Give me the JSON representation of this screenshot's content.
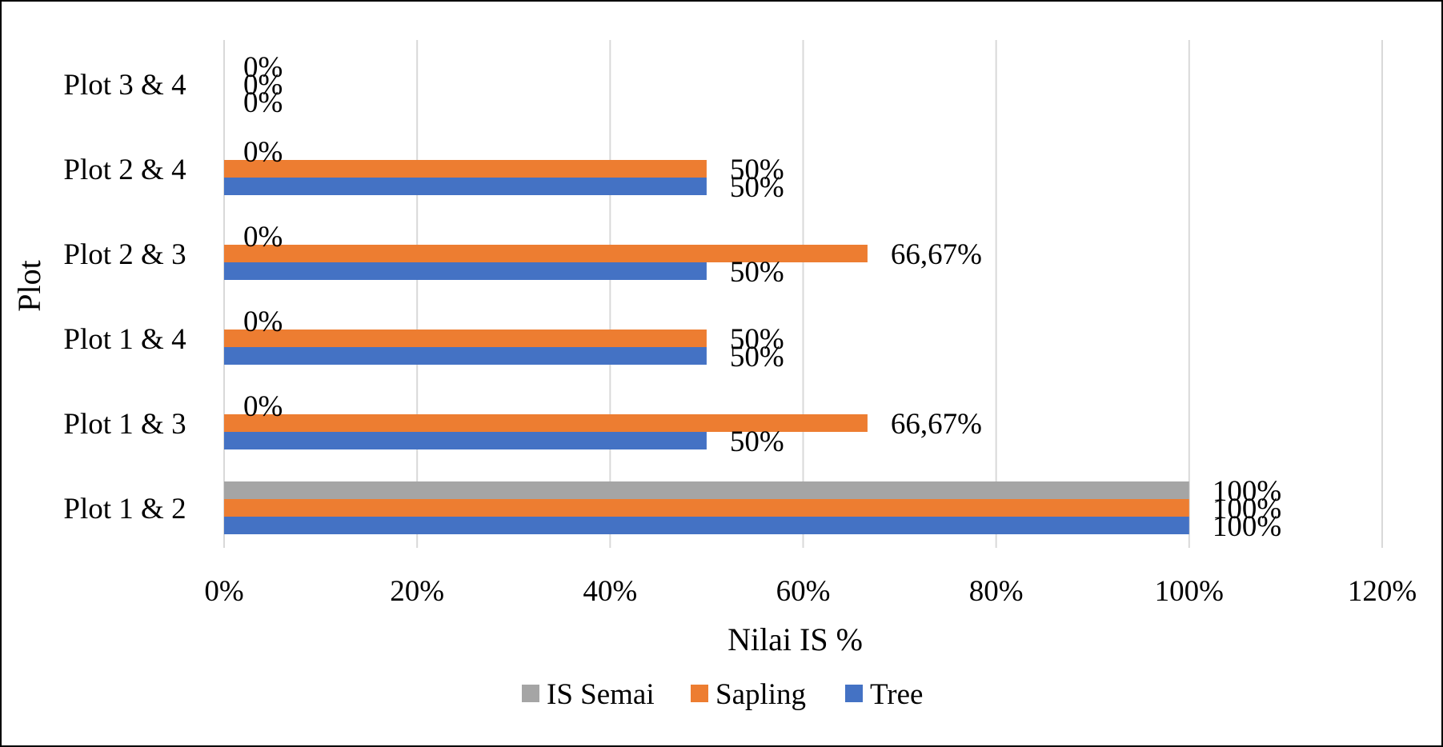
{
  "chart_data": {
    "type": "bar",
    "orientation": "horizontal",
    "categories": [
      "Plot 1 & 2",
      "Plot 1 & 3",
      "Plot 1 & 4",
      "Plot 2 & 3",
      "Plot 2 & 4",
      "Plot 3 & 4"
    ],
    "series": [
      {
        "name": "Tree",
        "color": "#4472c4",
        "values": [
          100,
          50,
          50,
          50,
          50,
          0
        ],
        "labels": [
          "100%",
          "50%",
          "50%",
          "50%",
          "50%",
          "0%"
        ]
      },
      {
        "name": "Sapling",
        "color": "#ed7d31",
        "values": [
          100,
          66.67,
          50,
          66.67,
          50,
          0
        ],
        "labels": [
          "100%",
          "66,67%",
          "50%",
          "66,67%",
          "50%",
          "0%"
        ]
      },
      {
        "name": "IS Semai",
        "color": "#a5a5a5",
        "values": [
          100,
          0,
          0,
          0,
          0,
          0
        ],
        "labels": [
          "100%",
          "0%",
          "0%",
          "0%",
          "0%",
          "0%"
        ]
      }
    ],
    "xlim": [
      0,
      120
    ],
    "xticks": [
      "0%",
      "20%",
      "40%",
      "60%",
      "80%",
      "100%",
      "120%"
    ],
    "xlabel": "Nilai IS %",
    "ylabel": "Plot",
    "grid": "vertical",
    "legend_position": "bottom",
    "legend": [
      "IS Semai",
      "Sapling",
      "Tree"
    ]
  }
}
